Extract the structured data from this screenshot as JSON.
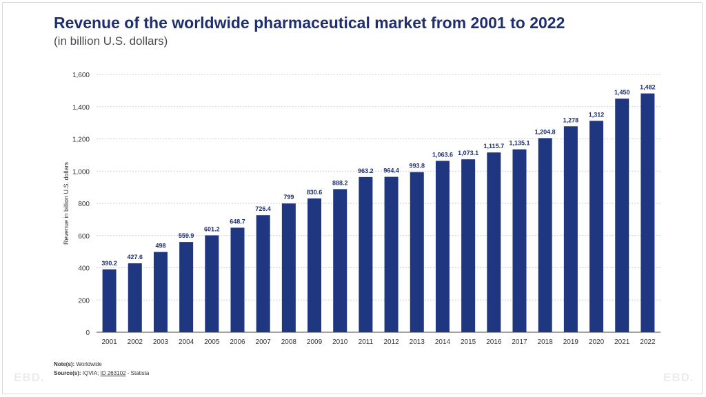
{
  "title": "Revenue of the worldwide pharmaceutical market from 2001 to 2022",
  "subtitle": "(in billion U.S. dollars)",
  "notes_label": "Note(s):",
  "notes_text": "Worldwide",
  "sources_label": "Source(s):",
  "sources_prefix": "IQVIA;",
  "sources_id": "ID 263102",
  "sources_suffix": "- Statista",
  "watermark": "EBD.",
  "colors": {
    "bar": "#1f3680",
    "label": "#1f2f6e",
    "grid": "#cfcfcf",
    "axis": "#333333"
  },
  "chart_data": {
    "type": "bar",
    "categories": [
      "2001",
      "2002",
      "2003",
      "2004",
      "2005",
      "2006",
      "2007",
      "2008",
      "2009",
      "2010",
      "2011",
      "2012",
      "2013",
      "2014",
      "2015",
      "2016",
      "2017",
      "2018",
      "2019",
      "2020",
      "2021",
      "2022"
    ],
    "values": [
      390.2,
      427.6,
      498,
      559.9,
      601.2,
      648.7,
      726.4,
      799,
      830.6,
      888.2,
      963.2,
      964.4,
      993.8,
      1063.6,
      1073.1,
      1115.7,
      1135.1,
      1204.8,
      1278,
      1312,
      1450,
      1482
    ],
    "value_labels": [
      "390.2",
      "427.6",
      "498",
      "559.9",
      "601.2",
      "648.7",
      "726.4",
      "799",
      "830.6",
      "888.2",
      "963.2",
      "964.4",
      "993.8",
      "1,063.6",
      "1,073.1",
      "1,115.7",
      "1,135.1",
      "1,204.8",
      "1,278",
      "1,312",
      "1,450",
      "1,482"
    ],
    "title": "Revenue of the worldwide pharmaceutical market from 2001 to 2022",
    "xlabel": "",
    "ylabel": "Revenue in billion U.S. dollars",
    "ylim": [
      0,
      1600
    ],
    "yticks": [
      0,
      200,
      400,
      600,
      800,
      1000,
      1200,
      1400,
      1600
    ],
    "ytick_labels": [
      "0",
      "200",
      "400",
      "600",
      "800",
      "1,000",
      "1,200",
      "1,400",
      "1,600"
    ],
    "grid": true,
    "legend": "none"
  }
}
